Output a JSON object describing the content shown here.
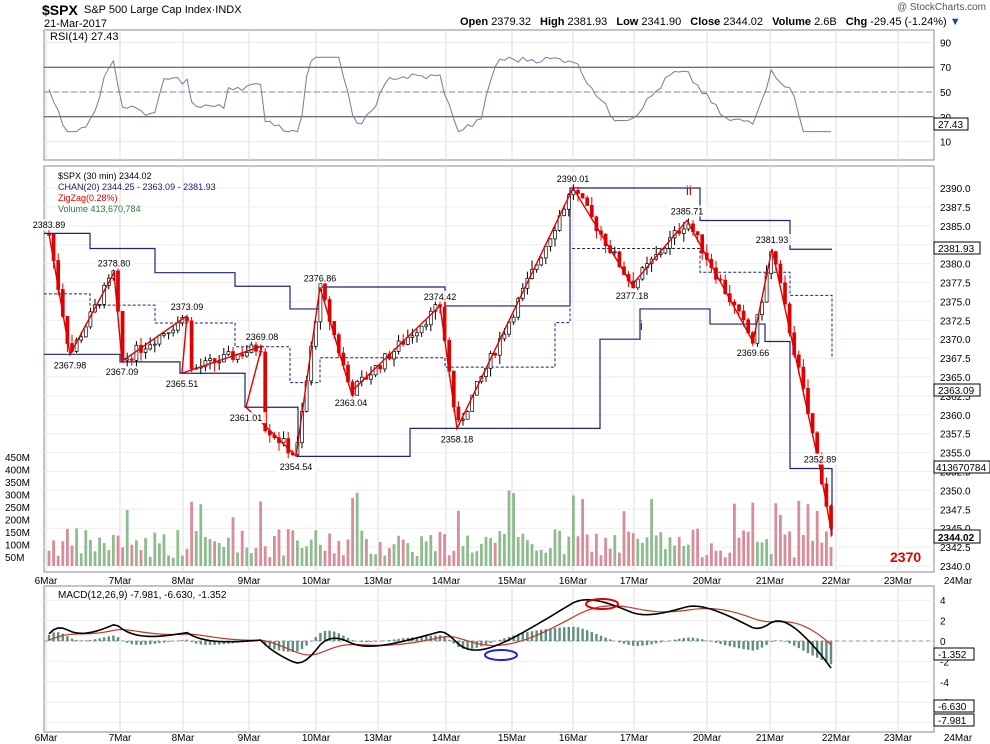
{
  "header": {
    "symbol": "$SPX",
    "name": "S&P 500 Large Cap Index·INDX",
    "date": "21-Mar-2017",
    "copyright": "@ StockCharts.com",
    "open_label": "Open",
    "open": "2379.32",
    "high_label": "High",
    "high": "2381.93",
    "low_label": "Low",
    "low": "2341.90",
    "close_label": "Close",
    "close": "2344.02",
    "volume_label": "Volume",
    "volume": "2.6B",
    "chg_label": "Chg",
    "chg": "-29.45 (-1.24%)"
  },
  "rsi_panel": {
    "label": "RSI(14) 27.43",
    "current": "27.43",
    "ticks": [
      "90",
      "70",
      "50",
      "30",
      "10"
    ],
    "overbought": 70,
    "oversold": 30,
    "ylim": [
      0,
      100
    ]
  },
  "price_panel": {
    "legend": [
      "$SPX (30 min) 2344.02",
      "CHAN(20) 2344.25 - 2363.09 - 2381.93",
      "ZigZag(0.28%)",
      "Volume 413,670,784"
    ],
    "right_ticks": [
      "2390.0",
      "2387.5",
      "2385.0",
      "2382.5",
      "2380.0",
      "2377.5",
      "2375.0",
      "2372.5",
      "2370.0",
      "2367.5",
      "2365.0",
      "2362.5",
      "2360.0",
      "2357.5",
      "2355.0",
      "2352.5",
      "2350.0",
      "2347.5",
      "2345.0",
      "2342.5",
      "2340.0"
    ],
    "vol_ticks": [
      "450M",
      "400M",
      "350M",
      "300M",
      "250M",
      "200M",
      "150M",
      "100M",
      "50M"
    ],
    "badges": {
      "chan_upper": "2381.93",
      "chan_mid": "2363.09",
      "close": "2344.02",
      "volume": "413670784"
    },
    "annotation_2370": "2370",
    "wave_i": "i",
    "wave_ii": "ii"
  },
  "macd_panel": {
    "label": "MACD(12,26,9) -7.981, -6.630, -1.352",
    "ticks": [
      "4",
      "2",
      "0",
      "-2",
      "-4",
      "-6",
      "-8"
    ],
    "badges": {
      "hist": "-1.352",
      "signal": "-6.630",
      "macd": "-7.981"
    }
  },
  "x_axis_labels": [
    "6Mar",
    "7Mar",
    "8Mar",
    "9Mar",
    "10Mar",
    "13Mar",
    "14Mar",
    "15Mar",
    "16Mar",
    "17Mar",
    "20Mar",
    "21Mar",
    "22Mar",
    "23Mar",
    "24Mar"
  ],
  "colors": {
    "price": "#000000",
    "channel": "#1a237e",
    "zigzag": "#e00000",
    "vol_up": "#8fbc8f",
    "vol_down": "#d98d9a",
    "rsi_fill": "#5f9ea0",
    "macd_signal": "#c0392b",
    "macd_hist": "#5f8f7f",
    "ellipse_red": "#e00000",
    "ellipse_blue": "#2222cc"
  },
  "chart_data": {
    "type": "line",
    "title": "$SPX S&P 500 Large Cap Index (30 min)",
    "ylim": [
      2340,
      2391
    ],
    "zigzag_pivots": [
      {
        "label": "2383.89",
        "y": 2383.89
      },
      {
        "label": "2367.98",
        "y": 2367.98
      },
      {
        "label": "2378.80",
        "y": 2378.8
      },
      {
        "label": "2367.09",
        "y": 2367.09
      },
      {
        "label": "2373.09",
        "y": 2373.09
      },
      {
        "label": "2365.51",
        "y": 2365.51
      },
      {
        "label": "2369.08",
        "y": 2369.08
      },
      {
        "label": "2361.01",
        "y": 2361.01
      },
      {
        "label": "2354.54",
        "y": 2354.54
      },
      {
        "label": "2376.86",
        "y": 2376.86
      },
      {
        "label": "2363.04",
        "y": 2363.04
      },
      {
        "label": "2374.42",
        "y": 2374.42
      },
      {
        "label": "2358.18",
        "y": 2358.18
      },
      {
        "label": "2390.01",
        "y": 2390.01
      },
      {
        "label": "2377.18",
        "y": 2377.18
      },
      {
        "label": "2385.71",
        "y": 2385.71
      },
      {
        "label": "2369.66",
        "y": 2369.66
      },
      {
        "label": "2381.93",
        "y": 2381.93
      },
      {
        "label": "2352.89",
        "y": 2352.89
      },
      {
        "label": "2344.02",
        "y": 2344.02
      }
    ]
  }
}
